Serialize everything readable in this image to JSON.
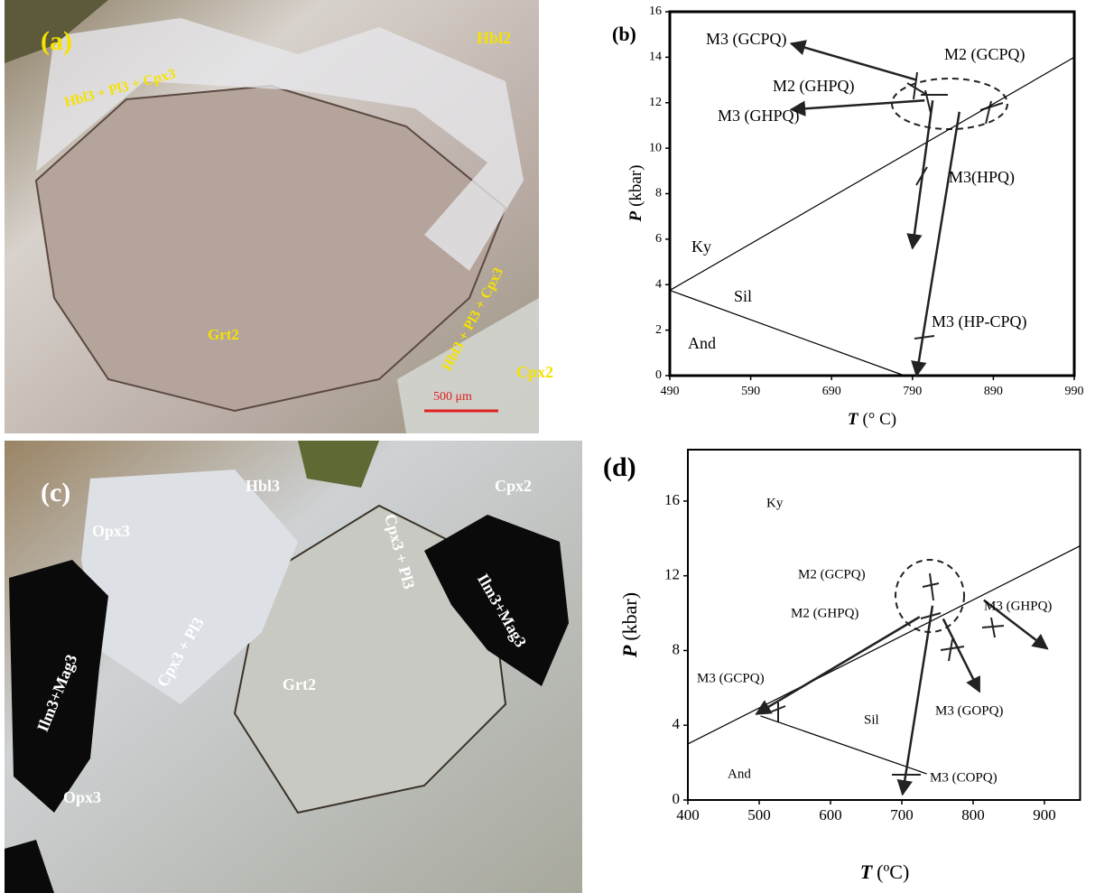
{
  "panels": {
    "a": {
      "label": "(a)",
      "annotations": [
        "Hbl2",
        "Hbl3 + Pl3 + Cpx3",
        "Grt2",
        "Hbl3 + Pl3 + Cpx3",
        "Cpx2"
      ],
      "scale_bar": "500 μm"
    },
    "c": {
      "label": "(c)",
      "annotations": [
        "Hbl3",
        "Cpx2",
        "Opx3",
        "Cpx3 + Pl3",
        "Ilm3+Mag3",
        "Grt2",
        "Cpx3 + Pl3",
        "Ilm3+Mag3",
        "Opx3"
      ]
    }
  },
  "chart_data": [
    {
      "type": "line",
      "panel_label": "(b)",
      "x_label": {
        "symbol": "T",
        "unit": "(° C)"
      },
      "y_label": {
        "symbol": "P",
        "unit": "(kbar)"
      },
      "xlim": [
        490,
        990
      ],
      "xticks": [
        490,
        590,
        690,
        790,
        890,
        990
      ],
      "ylim": [
        0,
        16
      ],
      "yticks": [
        0,
        2,
        4,
        6,
        8,
        10,
        12,
        14,
        16
      ],
      "annotations": [
        "M3 (GCPQ)",
        "M2 (GCPQ)",
        "M2 (GHPQ)",
        "M3 (GHPQ)",
        "M3(HPQ)",
        "Ky",
        "Sil",
        "And",
        "M3 (HP-CPQ)"
      ],
      "lines": [
        {
          "x": [
            490,
            990
          ],
          "y": [
            3.75,
            14
          ],
          "arrow": false
        },
        {
          "x": [
            490,
            780
          ],
          "y": [
            3.75,
            0
          ],
          "arrow": false
        },
        {
          "x": [
            795,
            640
          ],
          "y": [
            13.0,
            14.6
          ],
          "arrow": true
        },
        {
          "x": [
            805,
            640
          ],
          "y": [
            12.1,
            11.7
          ],
          "arrow": true
        },
        {
          "x": [
            815,
            790
          ],
          "y": [
            12.1,
            5.6
          ],
          "arrow": true
        },
        {
          "x": [
            848,
            795
          ],
          "y": [
            11.6,
            0
          ],
          "arrow": true
        }
      ]
    },
    {
      "type": "line",
      "panel_label": "(d)",
      "x_label": {
        "symbol": "T",
        "unit": "(ºC)"
      },
      "y_label": {
        "symbol": "P",
        "unit": "(kbar)"
      },
      "xlim": [
        400,
        950
      ],
      "xticks": [
        400,
        500,
        600,
        700,
        800,
        900
      ],
      "ylim": [
        0,
        18.75
      ],
      "yticks": [
        0,
        4,
        8,
        12,
        16
      ],
      "annotations": [
        "Ky",
        "M2 (GCPQ)",
        "M2 (GHPQ)",
        "M3 (GHPQ)",
        "M3 (GCPQ)",
        "Sil",
        "M3 (GOPQ)",
        "And",
        "M3 (COPQ)"
      ],
      "lines": [
        {
          "x": [
            400,
            950
          ],
          "y": [
            3.0,
            13.6
          ],
          "arrow": false
        },
        {
          "x": [
            502,
            735
          ],
          "y": [
            4.5,
            1.4
          ],
          "arrow": false
        },
        {
          "x": [
            725,
            496
          ],
          "y": [
            9.8,
            4.6
          ],
          "arrow": true
        },
        {
          "x": [
            743,
            701
          ],
          "y": [
            10.4,
            0.3
          ],
          "arrow": true
        },
        {
          "x": [
            815,
            904
          ],
          "y": [
            10.7,
            8.1
          ],
          "arrow": true
        },
        {
          "x": [
            758,
            809
          ],
          "y": [
            9.7,
            5.8
          ],
          "arrow": true
        }
      ]
    }
  ]
}
